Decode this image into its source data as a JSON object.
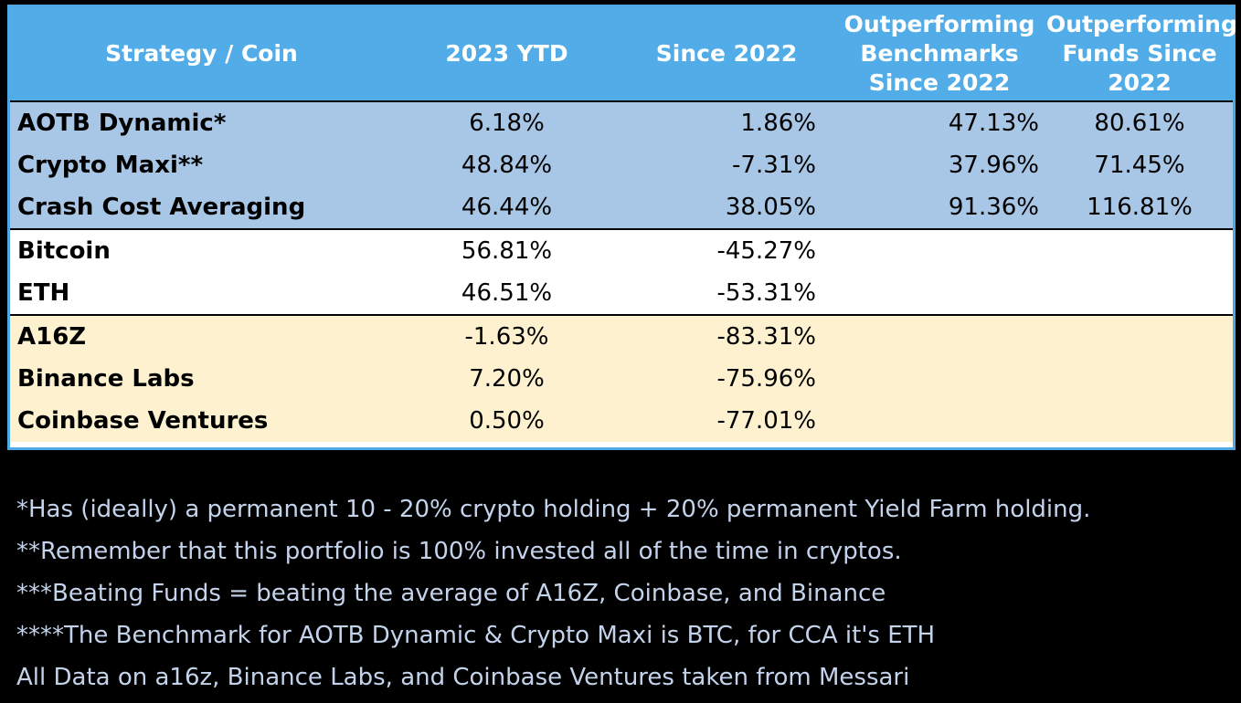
{
  "colors": {
    "header_bg": "#52ace8",
    "strategy_bg": "#a8c6e6",
    "coin_bg": "#ffffff",
    "fund_bg": "#fdf1cf",
    "notes_text": "#c4d3ec"
  },
  "table": {
    "headers": {
      "strategy": "Strategy / Coin",
      "ytd": "2023 YTD",
      "since": "Since 2022",
      "bench": [
        "Outperforming",
        "Benchmarks",
        "Since 2022"
      ],
      "funds": [
        "Outperforming",
        "Funds Since",
        "2022"
      ]
    },
    "strategies": [
      {
        "name": "AOTB Dynamic*",
        "ytd": "6.18%",
        "since": "1.86%",
        "bench": "47.13%",
        "funds": "80.61%"
      },
      {
        "name": "Crypto Maxi**",
        "ytd": "48.84%",
        "since": "-7.31%",
        "bench": "37.96%",
        "funds": "71.45%"
      },
      {
        "name": "Crash Cost Averaging",
        "ytd": "46.44%",
        "since": "38.05%",
        "bench": "91.36%",
        "funds": "116.81%"
      }
    ],
    "coins": [
      {
        "name": "Bitcoin",
        "ytd": "56.81%",
        "since": "-45.27%"
      },
      {
        "name": "ETH",
        "ytd": "46.51%",
        "since": "-53.31%"
      }
    ],
    "funds": [
      {
        "name": "A16Z",
        "ytd": "-1.63%",
        "since": "-83.31%"
      },
      {
        "name": "Binance Labs",
        "ytd": "7.20%",
        "since": "-75.96%"
      },
      {
        "name": "Coinbase Ventures",
        "ytd": "0.50%",
        "since": "-77.01%"
      }
    ]
  },
  "notes": [
    "*Has (ideally) a permanent 10 - 20% crypto holding + 20% permanent Yield Farm holding.",
    "**Remember that this portfolio is 100% invested all of the time in cryptos.",
    "***Beating Funds = beating the average of A16Z, Coinbase, and Binance",
    "****The Benchmark for AOTB Dynamic & Crypto Maxi is BTC, for CCA it's ETH",
    "All Data on a16z, Binance Labs, and Coinbase Ventures taken from Messari"
  ]
}
